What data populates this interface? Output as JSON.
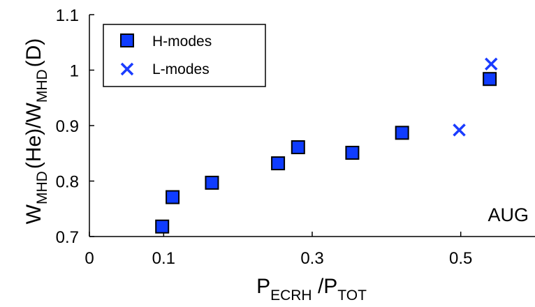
{
  "chart_data": {
    "type": "scatter",
    "title": "",
    "annotation": "AUG",
    "xlabel": {
      "main": "P",
      "sub": "ECRH",
      "main2": " /P",
      "sub2": "TOT"
    },
    "ylabel": {
      "p1": "W",
      "s1": "MHD",
      "p2": "(He)/W",
      "s2": "MHD",
      "p3": "(D)"
    },
    "xlim": [
      0,
      0.6
    ],
    "ylim": [
      0.7,
      1.1
    ],
    "xticks": [
      0,
      0.1,
      0.3,
      0.5
    ],
    "xtick_labels": [
      "0",
      "0.1",
      "0.3",
      "0.5"
    ],
    "yticks": [
      0.7,
      0.8,
      0.9,
      1.0,
      1.1
    ],
    "ytick_labels": [
      "0.7",
      "0.8",
      "0.9",
      "1",
      "1.1"
    ],
    "grid": false,
    "legend_position": "top-left",
    "series": [
      {
        "name": "H-modes",
        "marker": "square",
        "color": "#0f3cff",
        "points": [
          {
            "x": 0.098,
            "y": 0.718
          },
          {
            "x": 0.112,
            "y": 0.771
          },
          {
            "x": 0.165,
            "y": 0.797
          },
          {
            "x": 0.254,
            "y": 0.832
          },
          {
            "x": 0.281,
            "y": 0.861
          },
          {
            "x": 0.354,
            "y": 0.851
          },
          {
            "x": 0.421,
            "y": 0.887
          },
          {
            "x": 0.539,
            "y": 0.984
          }
        ]
      },
      {
        "name": "L-modes",
        "marker": "x",
        "color": "#1a3cff",
        "points": [
          {
            "x": 0.498,
            "y": 0.892
          },
          {
            "x": 0.541,
            "y": 1.011
          }
        ]
      }
    ]
  }
}
